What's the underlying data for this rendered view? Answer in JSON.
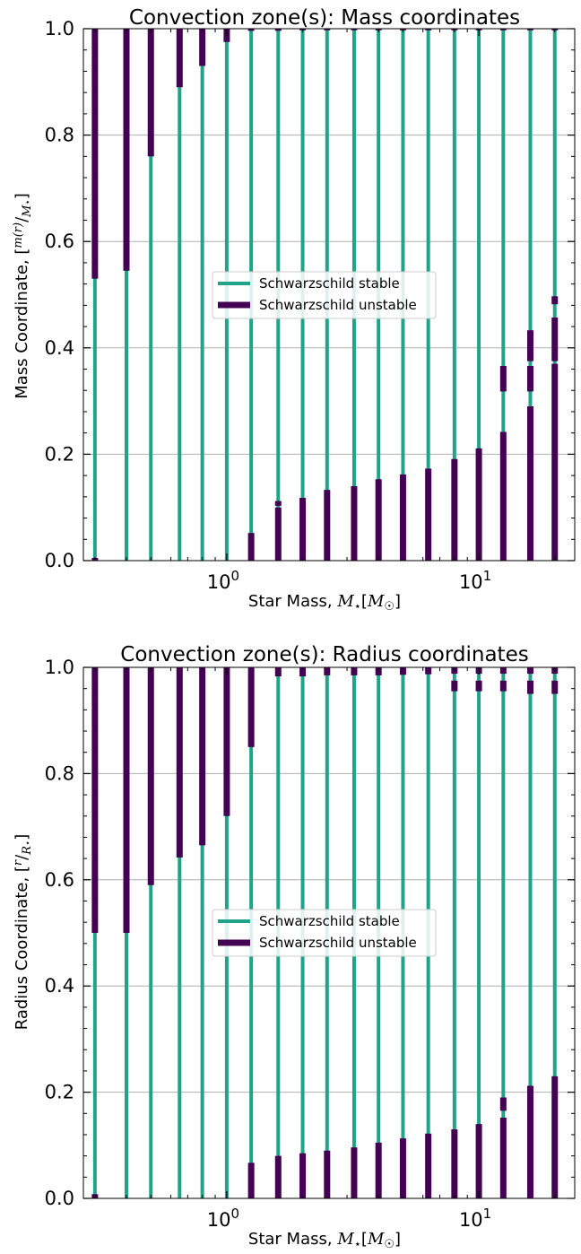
{
  "colors": {
    "stable": "#21a38a",
    "unstable": "#440154",
    "grid": "#b0b0b0"
  },
  "chart_data": [
    {
      "type": "bar",
      "title": "Convection zone(s): Mass coordinates",
      "xlabel": "Star Mass, M⋆[M☉]",
      "ylabel": "Mass Coordinate, [m(r)/M⋆]",
      "xscale": "log",
      "xlim": [
        0.27,
        24
      ],
      "ylim": [
        0,
        1
      ],
      "xticks": [
        {
          "base": "10",
          "exp": "0",
          "value": 1
        },
        {
          "base": "10",
          "exp": "1",
          "value": 10
        }
      ],
      "yticks": [
        "0.0",
        "0.2",
        "0.4",
        "0.6",
        "0.8",
        "1.0"
      ],
      "grid": "horizontal",
      "legend_position": "center",
      "legend": [
        {
          "label": "Schwarzschild stable",
          "series": "stable"
        },
        {
          "label": "Schwarzschild unstable",
          "series": "unstable"
        }
      ],
      "stars": [
        {
          "mass": 0.3,
          "unstable_zones": [
            [
              0,
              0.005
            ],
            [
              0.53,
              1.0
            ]
          ]
        },
        {
          "mass": 0.4,
          "unstable_zones": [
            [
              0.545,
              1.0
            ]
          ]
        },
        {
          "mass": 0.5,
          "unstable_zones": [
            [
              0.76,
              1.0
            ]
          ]
        },
        {
          "mass": 0.65,
          "unstable_zones": [
            [
              0.89,
              1.0
            ]
          ]
        },
        {
          "mass": 0.8,
          "unstable_zones": [
            [
              0.93,
              1.0
            ]
          ]
        },
        {
          "mass": 1.0,
          "unstable_zones": [
            [
              0.975,
              1.0
            ]
          ]
        },
        {
          "mass": 1.25,
          "unstable_zones": [
            [
              0,
              0.052
            ],
            [
              0.996,
              1.0
            ]
          ]
        },
        {
          "mass": 1.6,
          "unstable_zones": [
            [
              0,
              0.1
            ],
            [
              0.103,
              0.112
            ],
            [
              0.996,
              1.0
            ]
          ]
        },
        {
          "mass": 2.0,
          "unstable_zones": [
            [
              0,
              0.118
            ],
            [
              0.997,
              1.0
            ]
          ]
        },
        {
          "mass": 2.5,
          "unstable_zones": [
            [
              0,
              0.133
            ],
            [
              0.997,
              1.0
            ]
          ]
        },
        {
          "mass": 3.2,
          "unstable_zones": [
            [
              0,
              0.14
            ],
            [
              0.997,
              1.0
            ]
          ]
        },
        {
          "mass": 4.0,
          "unstable_zones": [
            [
              0,
              0.153
            ],
            [
              0.997,
              1.0
            ]
          ]
        },
        {
          "mass": 5.0,
          "unstable_zones": [
            [
              0,
              0.162
            ],
            [
              0.997,
              1.0
            ]
          ]
        },
        {
          "mass": 6.3,
          "unstable_zones": [
            [
              0,
              0.173
            ],
            [
              0.997,
              1.0
            ]
          ]
        },
        {
          "mass": 8.0,
          "unstable_zones": [
            [
              0,
              0.191
            ],
            [
              0.997,
              1.0
            ]
          ]
        },
        {
          "mass": 10.0,
          "unstable_zones": [
            [
              0,
              0.211
            ],
            [
              0.997,
              1.0
            ]
          ]
        },
        {
          "mass": 12.5,
          "unstable_zones": [
            [
              0,
              0.242
            ],
            [
              0.318,
              0.366
            ],
            [
              0.997,
              1.0
            ]
          ]
        },
        {
          "mass": 16.0,
          "unstable_zones": [
            [
              0,
              0.29
            ],
            [
              0.318,
              0.366
            ],
            [
              0.375,
              0.433
            ],
            [
              0.997,
              1.0
            ]
          ]
        },
        {
          "mass": 20.0,
          "unstable_zones": [
            [
              0,
              0.37
            ],
            [
              0.375,
              0.457
            ],
            [
              0.482,
              0.497
            ],
            [
              0.997,
              1.0
            ]
          ]
        }
      ]
    },
    {
      "type": "bar",
      "title": "Convection zone(s): Radius coordinates",
      "xlabel": "Star Mass, M⋆[M☉]",
      "ylabel": "Radius Coordinate, [r/R⋆]",
      "xscale": "log",
      "xlim": [
        0.27,
        24
      ],
      "ylim": [
        0,
        1
      ],
      "xticks": [
        {
          "base": "10",
          "exp": "0",
          "value": 1
        },
        {
          "base": "10",
          "exp": "1",
          "value": 10
        }
      ],
      "yticks": [
        "0.0",
        "0.2",
        "0.4",
        "0.6",
        "0.8",
        "1.0"
      ],
      "grid": "horizontal",
      "legend_position": "center",
      "legend": [
        {
          "label": "Schwarzschild stable",
          "series": "stable"
        },
        {
          "label": "Schwarzschild unstable",
          "series": "unstable"
        }
      ],
      "stars": [
        {
          "mass": 0.3,
          "unstable_zones": [
            [
              0,
              0.008
            ],
            [
              0.5,
              1.0
            ]
          ]
        },
        {
          "mass": 0.4,
          "unstable_zones": [
            [
              0.5,
              1.0
            ]
          ]
        },
        {
          "mass": 0.5,
          "unstable_zones": [
            [
              0.59,
              1.0
            ]
          ]
        },
        {
          "mass": 0.65,
          "unstable_zones": [
            [
              0.642,
              1.0
            ]
          ]
        },
        {
          "mass": 0.8,
          "unstable_zones": [
            [
              0.665,
              1.0
            ]
          ]
        },
        {
          "mass": 1.0,
          "unstable_zones": [
            [
              0.72,
              1.0
            ]
          ]
        },
        {
          "mass": 1.25,
          "unstable_zones": [
            [
              0,
              0.067
            ],
            [
              0.85,
              1.0
            ]
          ]
        },
        {
          "mass": 1.6,
          "unstable_zones": [
            [
              0,
              0.08
            ],
            [
              0.983,
              1.0
            ]
          ]
        },
        {
          "mass": 2.0,
          "unstable_zones": [
            [
              0,
              0.085
            ],
            [
              0.983,
              1.0
            ]
          ]
        },
        {
          "mass": 2.5,
          "unstable_zones": [
            [
              0,
              0.09
            ],
            [
              0.985,
              1.0
            ]
          ]
        },
        {
          "mass": 3.2,
          "unstable_zones": [
            [
              0,
              0.096
            ],
            [
              0.985,
              1.0
            ]
          ]
        },
        {
          "mass": 4.0,
          "unstable_zones": [
            [
              0,
              0.105
            ],
            [
              0.985,
              1.0
            ]
          ]
        },
        {
          "mass": 5.0,
          "unstable_zones": [
            [
              0,
              0.113
            ],
            [
              0.986,
              1.0
            ]
          ]
        },
        {
          "mass": 6.3,
          "unstable_zones": [
            [
              0,
              0.122
            ],
            [
              0.987,
              1.0
            ]
          ]
        },
        {
          "mass": 8.0,
          "unstable_zones": [
            [
              0,
              0.13
            ],
            [
              0.955,
              0.975
            ],
            [
              0.988,
              1.0
            ]
          ]
        },
        {
          "mass": 10.0,
          "unstable_zones": [
            [
              0,
              0.14
            ],
            [
              0.955,
              0.975
            ],
            [
              0.988,
              1.0
            ]
          ]
        },
        {
          "mass": 12.5,
          "unstable_zones": [
            [
              0,
              0.152
            ],
            [
              0.165,
              0.19
            ],
            [
              0.955,
              0.975
            ],
            [
              0.988,
              1.0
            ]
          ]
        },
        {
          "mass": 16.0,
          "unstable_zones": [
            [
              0,
              0.212
            ],
            [
              0.95,
              0.975
            ],
            [
              0.988,
              1.0
            ]
          ]
        },
        {
          "mass": 20.0,
          "unstable_zones": [
            [
              0,
              0.23
            ],
            [
              0.95,
              0.975
            ],
            [
              0.988,
              1.0
            ]
          ]
        }
      ]
    }
  ]
}
